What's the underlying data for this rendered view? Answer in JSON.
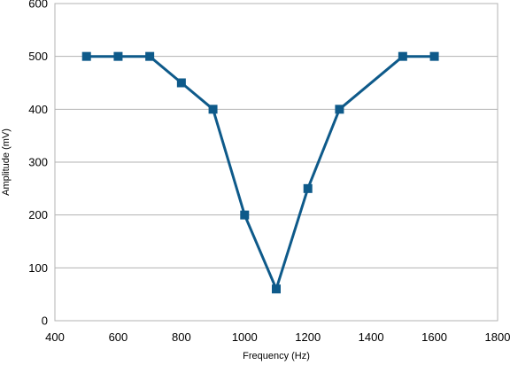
{
  "chart_data": {
    "type": "line",
    "title": "",
    "xlabel": "Frequency (Hz)",
    "ylabel": "Amplitude (mV)",
    "xlim": [
      400,
      1800
    ],
    "ylim": [
      0,
      600
    ],
    "xticks": [
      400,
      600,
      800,
      1000,
      1200,
      1400,
      1600,
      1800
    ],
    "yticks": [
      0,
      100,
      200,
      300,
      400,
      500,
      600
    ],
    "grid": {
      "horizontal": true,
      "vertical": false
    },
    "legend": "none",
    "series": [
      {
        "color": "#0e5a8a",
        "marker": "square",
        "x": [
          500,
          600,
          700,
          800,
          900,
          1000,
          1100,
          1200,
          1300,
          1500,
          1600
        ],
        "y": [
          500,
          500,
          500,
          450,
          400,
          200,
          60,
          250,
          400,
          500,
          500
        ]
      }
    ]
  }
}
